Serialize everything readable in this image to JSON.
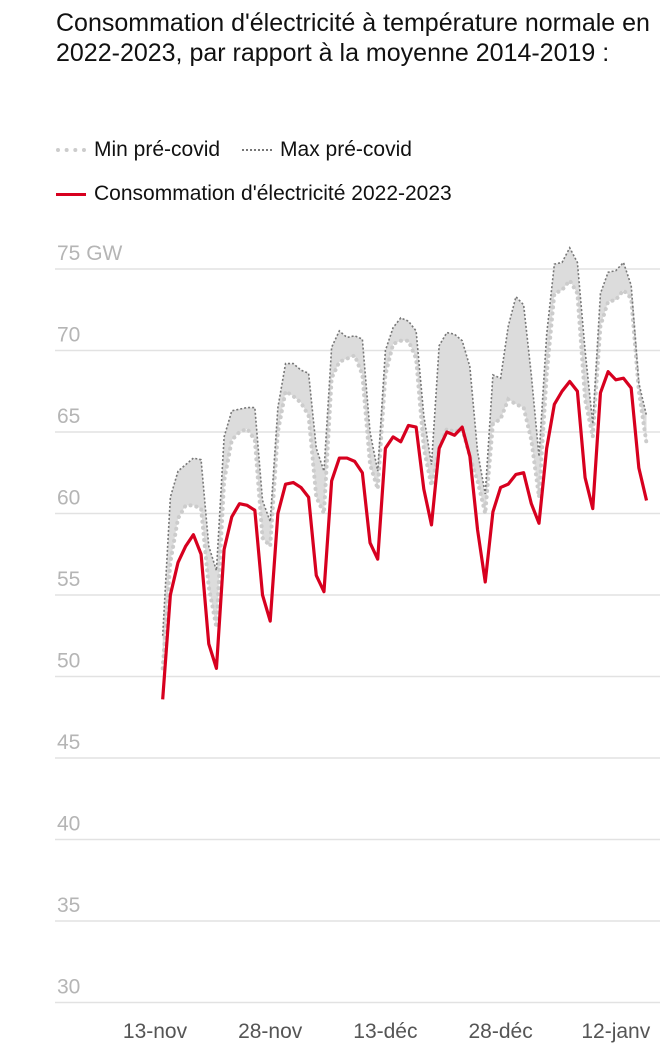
{
  "title": "Consommation d'électricité à température normale en 2022-2023, par rapport à la moyenne 2014-2019 :",
  "legend": {
    "min": "Min pré-covid",
    "max": "Max pré-covid",
    "current": "Consommation d'électricité 2022-2023"
  },
  "colors": {
    "current": "#d7001f",
    "band": "#dcdcdc",
    "max": "#777777",
    "min": "#cccccc",
    "grid": "#e2e2e2"
  },
  "chart_data": {
    "type": "line",
    "title": "Consommation d'électricité à température normale en 2022-2023, par rapport à la moyenne 2014-2019 :",
    "xlabel": "",
    "ylabel": "GW",
    "ylim": [
      30,
      76
    ],
    "yticks": [
      30,
      35,
      40,
      45,
      50,
      55,
      60,
      65,
      70,
      75
    ],
    "ytick_labels": [
      "30",
      "35",
      "40",
      "45",
      "50",
      "55",
      "60",
      "65",
      "70",
      "75 GW"
    ],
    "x_unit": "days after 13-nov",
    "x_start_day": 1,
    "xticks": [
      0,
      15,
      30,
      45,
      60
    ],
    "xtick_labels": [
      "13-nov",
      "28-nov",
      "13-déc",
      "28-déc",
      "12-janv"
    ],
    "grid": true,
    "legend_position": "top",
    "series": [
      {
        "name": "Min pré-covid",
        "style": "dotted-light",
        "values": [
          50.5,
          57,
          59.7,
          60.5,
          60.5,
          60.3,
          55.5,
          53,
          62,
          64.5,
          65,
          65.2,
          64.5,
          58.5,
          58,
          65,
          67.5,
          67.2,
          66.8,
          66,
          61,
          60,
          68.3,
          69.3,
          69.5,
          69.7,
          68.5,
          63,
          61.5,
          68.5,
          70.4,
          70.6,
          70.6,
          69.5,
          64,
          61.7,
          64,
          65.2,
          65,
          65.2,
          63.5,
          62,
          60,
          65.5,
          65.8,
          67,
          66.7,
          66.5,
          64.5,
          61,
          68.5,
          73.5,
          73.7,
          74.3,
          73.5,
          67,
          64.7,
          71.5,
          73,
          73.1,
          73.7,
          73.2,
          67.5,
          64.3
        ]
      },
      {
        "name": "Max pré-covid",
        "style": "dotted-dark",
        "values": [
          52.5,
          61,
          62.6,
          63,
          63.4,
          63.3,
          58,
          56.5,
          64.7,
          66.3,
          66.4,
          66.5,
          66.5,
          60.8,
          59.5,
          66.5,
          69.2,
          69.2,
          68.8,
          68.6,
          64,
          62.6,
          70.2,
          71.2,
          70.8,
          70.9,
          70.7,
          65,
          62.6,
          70,
          71.4,
          72,
          71.8,
          71.2,
          66,
          63,
          70.3,
          71.1,
          71,
          70.6,
          69,
          63.8,
          61.2,
          68.5,
          68.3,
          71.5,
          73.3,
          72.8,
          68.5,
          63.5,
          71,
          75.3,
          75.4,
          76.3,
          75.4,
          70,
          65.5,
          73.5,
          74.8,
          74.9,
          75.4,
          74,
          68,
          66
        ]
      },
      {
        "name": "Consommation d'électricité 2022-2023",
        "style": "solid-red",
        "values": [
          48.6,
          55,
          57,
          58,
          58.7,
          57.5,
          52,
          50.5,
          57.8,
          59.8,
          60.6,
          60.5,
          60.2,
          55,
          53.4,
          60,
          61.8,
          61.9,
          61.6,
          61,
          56.2,
          55.2,
          62,
          63.4,
          63.4,
          63.2,
          62.5,
          58.2,
          57.2,
          64,
          64.7,
          64.4,
          65.4,
          65.3,
          61.5,
          59.3,
          64,
          65,
          64.8,
          65.3,
          63.5,
          59,
          55.8,
          60.1,
          61.6,
          61.8,
          62.4,
          62.5,
          60.6,
          59.4,
          64,
          66.7,
          67.5,
          68.1,
          67.5,
          62.2,
          60.3,
          67.4,
          68.7,
          68.2,
          68.3,
          67.7,
          62.8,
          60.8
        ]
      }
    ]
  }
}
